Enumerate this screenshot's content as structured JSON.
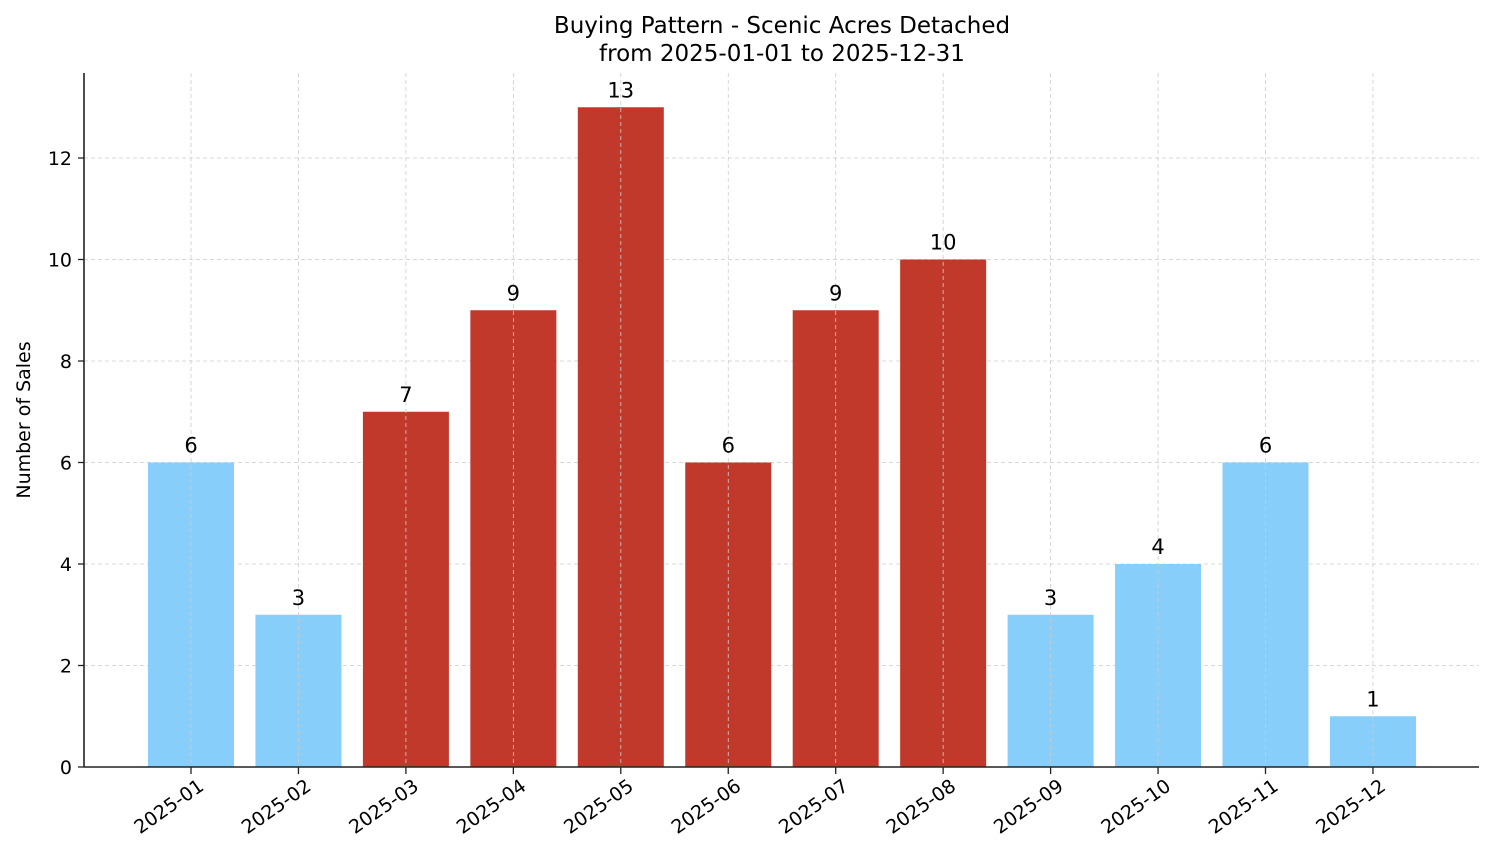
{
  "chart_data": {
    "type": "bar",
    "title": "Buying Pattern - Scenic Acres Detached",
    "subtitle": "from 2025-01-01 to 2025-12-31",
    "xlabel": "",
    "ylabel": "Number of Sales",
    "categories": [
      "2025-01",
      "2025-02",
      "2025-03",
      "2025-04",
      "2025-05",
      "2025-06",
      "2025-07",
      "2025-08",
      "2025-09",
      "2025-10",
      "2025-11",
      "2025-12"
    ],
    "values": [
      6,
      3,
      7,
      9,
      13,
      6,
      9,
      10,
      3,
      4,
      6,
      1
    ],
    "bar_colors": [
      "#87CEFA",
      "#87CEFA",
      "#C0392B",
      "#C0392B",
      "#C0392B",
      "#C0392B",
      "#C0392B",
      "#C0392B",
      "#87CEFA",
      "#87CEFA",
      "#87CEFA",
      "#87CEFA"
    ],
    "highlight_color": "#C0392B",
    "base_color": "#87CEFA",
    "yticks": [
      0,
      2,
      4,
      6,
      8,
      10,
      12
    ],
    "ylim": [
      0,
      13.65
    ],
    "grid": true,
    "data_labels": true,
    "legend": null
  }
}
